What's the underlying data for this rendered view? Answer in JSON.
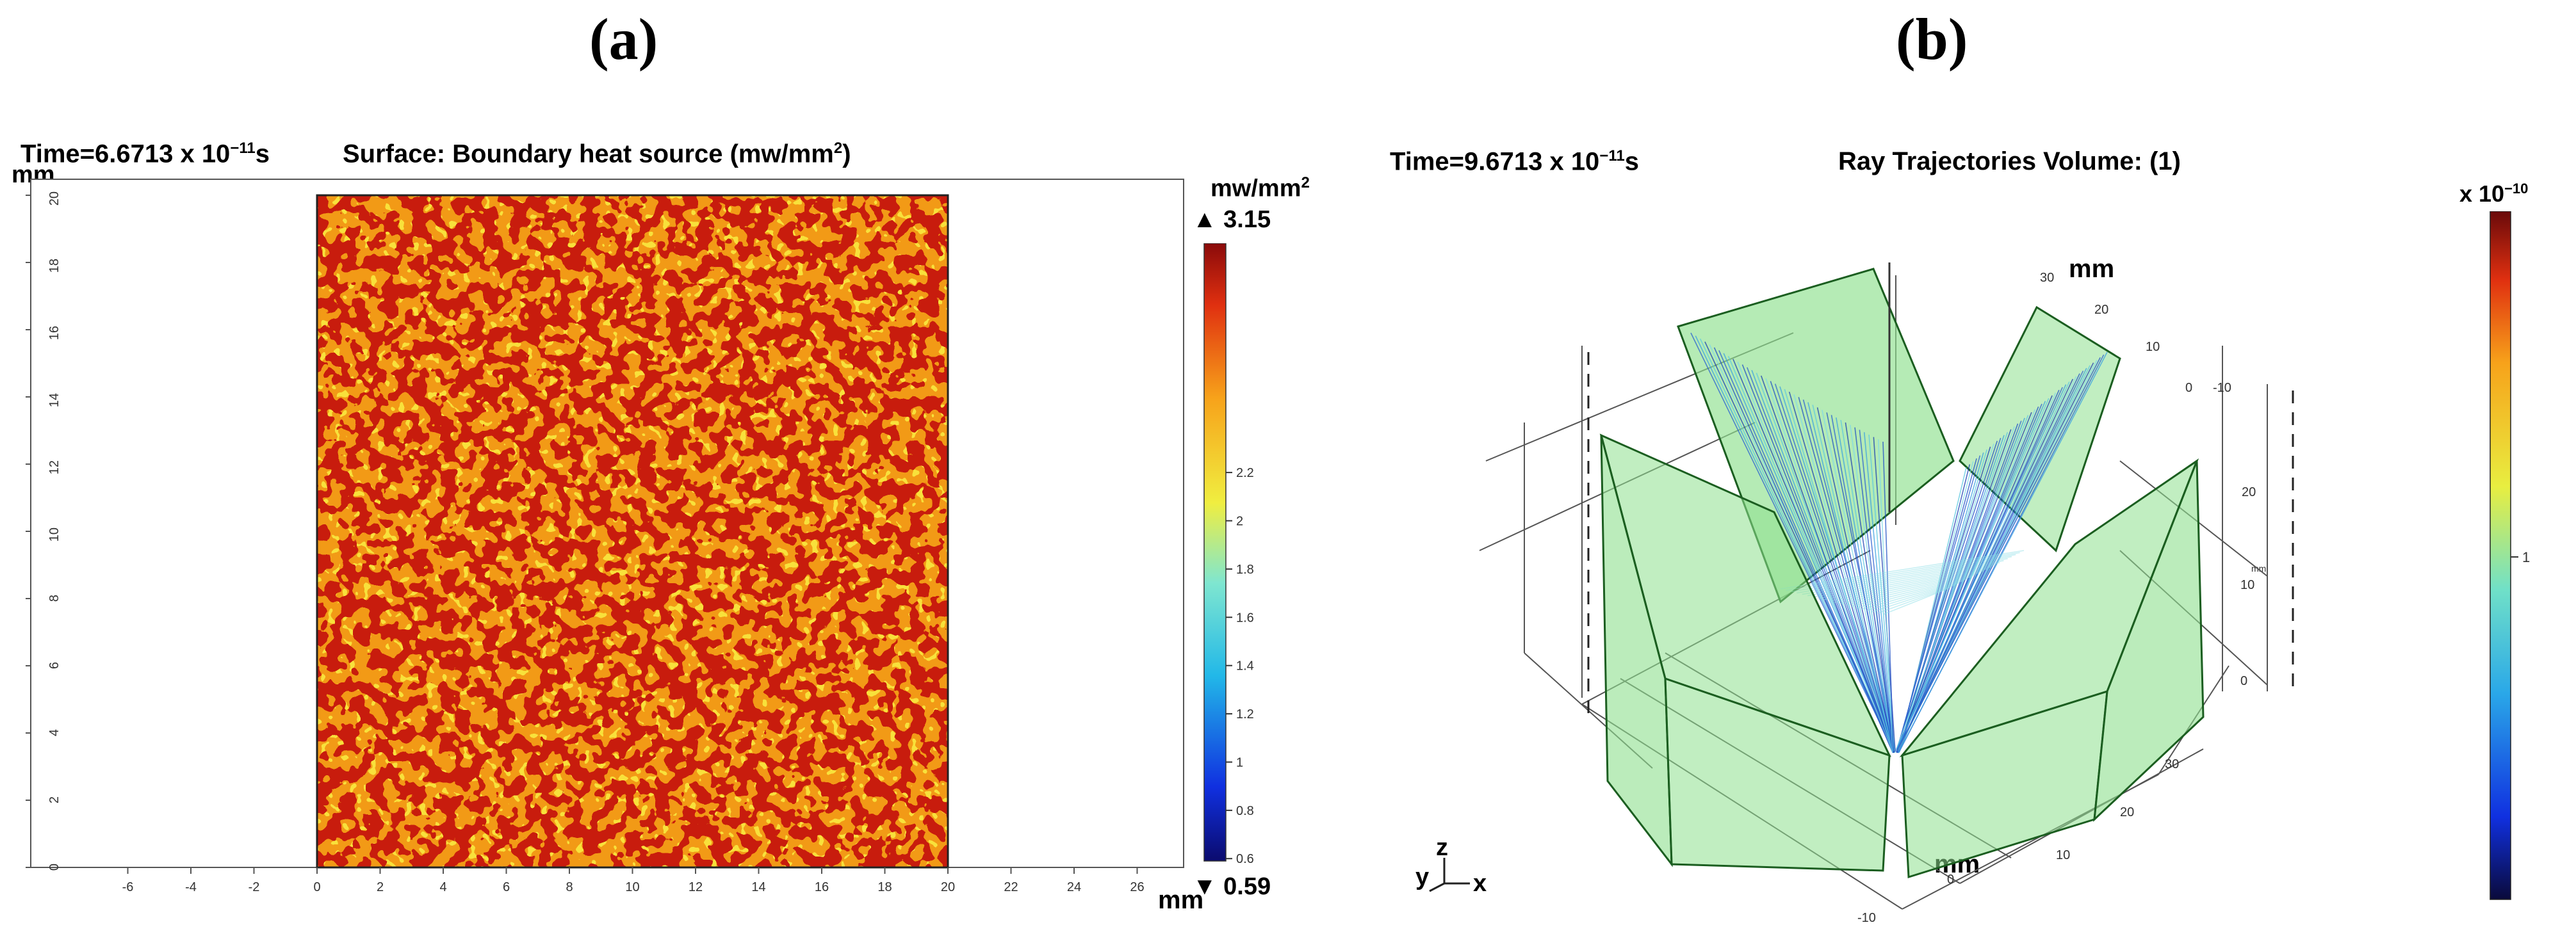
{
  "panel_a": {
    "label": "(a)",
    "time": {
      "prefix": "Time=6.6713 x 10",
      "exp": "−11",
      "suffix": "s"
    },
    "title": {
      "text": "Surface: Boundary heat source (mw/mm",
      "sup": "2",
      "close": ")"
    },
    "axis_unit_y": "mm",
    "axis_unit_x": "mm",
    "x_ticks": [
      "-6",
      "-4",
      "-2",
      "0",
      "2",
      "4",
      "6",
      "8",
      "10",
      "12",
      "14",
      "16",
      "18",
      "20",
      "22",
      "24",
      "26"
    ],
    "y_ticks": [
      "0",
      "2",
      "4",
      "6",
      "8",
      "10",
      "12",
      "14",
      "16",
      "18",
      "20"
    ],
    "colorbar": {
      "unit_text": "mw/mm",
      "unit_sup": "2",
      "max_label": "▲ 3.15",
      "min_label": "▼ 0.59",
      "ticks": [
        "0.6",
        "0.8",
        "1",
        "1.2",
        "1.4",
        "1.6",
        "1.8",
        "2",
        "2.2"
      ],
      "range": [
        0.59,
        3.15
      ]
    }
  },
  "panel_b": {
    "label": "(b)",
    "time": {
      "prefix": "Time=9.6713 x 10",
      "exp": "−11",
      "suffix": "s"
    },
    "title": "Ray Trajectories Volume: (1)",
    "unit_top": "mm",
    "unit_bottom": "mm",
    "axis_y_small": "mm",
    "ticks_top": [
      "30",
      "20",
      "10",
      "0",
      "-10"
    ],
    "ticks_right": [
      "20",
      "10",
      "0"
    ],
    "ticks_front_right": [
      "30",
      "20",
      "10"
    ],
    "ticks_front_left": [
      "0",
      "-10"
    ],
    "triad": {
      "y": "y",
      "z": "z",
      "x": "x"
    },
    "colorbar": {
      "exp_prefix": "x 10",
      "exp": "−10",
      "mid_label": "1"
    }
  },
  "colors": {
    "heat_red": "#c81a0c",
    "heat_orange": "#f29a18",
    "heat_yellow": "#f8e13a",
    "glass_green": "#8ee08e",
    "ray_blue": "#2a5fd0"
  }
}
